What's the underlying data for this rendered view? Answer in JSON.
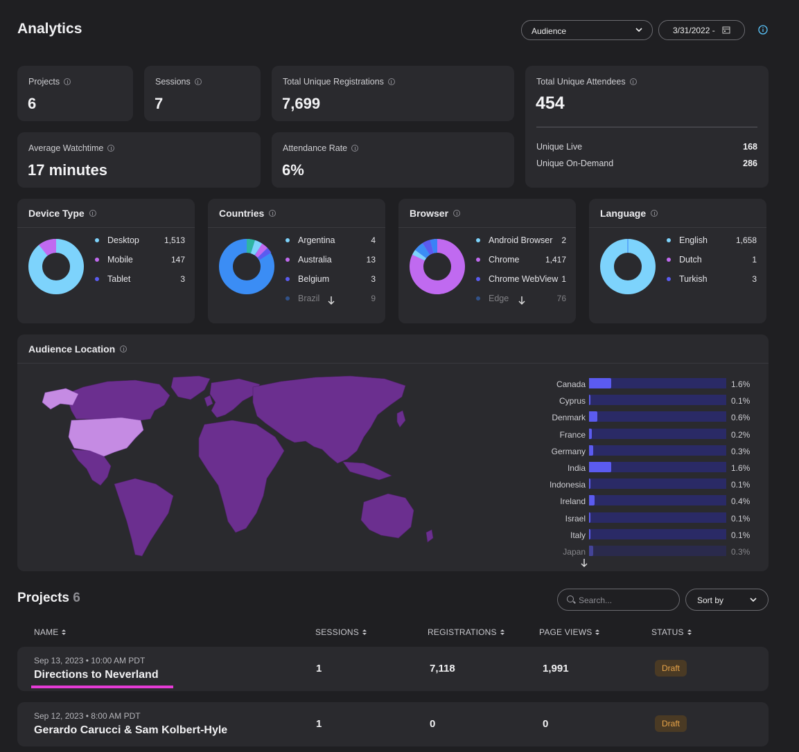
{
  "header": {
    "title": "Analytics",
    "dropdown_value": "Audience",
    "date_value": "3/31/2022 -"
  },
  "stats": {
    "projects": {
      "label": "Projects",
      "value": "6"
    },
    "sessions": {
      "label": "Sessions",
      "value": "7"
    },
    "registrations": {
      "label": "Total Unique Registrations",
      "value": "7,699"
    },
    "watchtime": {
      "label": "Average Watchtime",
      "value": "17 minutes"
    },
    "attendance": {
      "label": "Attendance Rate",
      "value": "6%"
    },
    "attendees": {
      "label": "Total Unique Attendees",
      "value": "454",
      "live_label": "Unique Live",
      "live_value": "168",
      "ondemand_label": "Unique On-Demand",
      "ondemand_value": "286"
    }
  },
  "device": {
    "title": "Device Type",
    "items": [
      {
        "label": "Desktop",
        "value": "1,513",
        "color": "#7dd3fc"
      },
      {
        "label": "Mobile",
        "value": "147",
        "color": "#c06af0"
      },
      {
        "label": "Tablet",
        "value": "3",
        "color": "#5b5bf0"
      }
    ]
  },
  "countries": {
    "title": "Countries",
    "items": [
      {
        "label": "Argentina",
        "value": "4",
        "color": "#7dd3fc"
      },
      {
        "label": "Australia",
        "value": "13",
        "color": "#c06af0"
      },
      {
        "label": "Belgium",
        "value": "3",
        "color": "#5b5bf0"
      },
      {
        "label": "Brazil",
        "value": "9",
        "color": "#3b82f6"
      }
    ]
  },
  "browser": {
    "title": "Browser",
    "items": [
      {
        "label": "Android Browser",
        "value": "2",
        "color": "#7dd3fc"
      },
      {
        "label": "Chrome",
        "value": "1,417",
        "color": "#c06af0"
      },
      {
        "label": "Chrome WebView",
        "value": "1",
        "color": "#5b5bf0"
      },
      {
        "label": "Edge",
        "value": "76",
        "color": "#3b82f6"
      }
    ]
  },
  "language": {
    "title": "Language",
    "items": [
      {
        "label": "English",
        "value": "1,658",
        "color": "#7dd3fc"
      },
      {
        "label": "Dutch",
        "value": "1",
        "color": "#c06af0"
      },
      {
        "label": "Turkish",
        "value": "3",
        "color": "#5b5bf0"
      }
    ]
  },
  "location": {
    "title": "Audience Location",
    "rows": [
      {
        "country": "Canada",
        "pct": "1.6%",
        "fraction": 0.016
      },
      {
        "country": "Cyprus",
        "pct": "0.1%",
        "fraction": 0.001
      },
      {
        "country": "Denmark",
        "pct": "0.6%",
        "fraction": 0.006
      },
      {
        "country": "France",
        "pct": "0.2%",
        "fraction": 0.002
      },
      {
        "country": "Germany",
        "pct": "0.3%",
        "fraction": 0.003
      },
      {
        "country": "India",
        "pct": "1.6%",
        "fraction": 0.016
      },
      {
        "country": "Indonesia",
        "pct": "0.1%",
        "fraction": 0.001
      },
      {
        "country": "Ireland",
        "pct": "0.4%",
        "fraction": 0.004
      },
      {
        "country": "Israel",
        "pct": "0.1%",
        "fraction": 0.001
      },
      {
        "country": "Italy",
        "pct": "0.1%",
        "fraction": 0.001
      },
      {
        "country": "Japan",
        "pct": "0.3%",
        "fraction": 0.003
      }
    ]
  },
  "projects": {
    "title": "Projects",
    "count": "6",
    "search_placeholder": "Search...",
    "sort_label": "Sort by",
    "columns": [
      "NAME",
      "SESSIONS",
      "REGISTRATIONS",
      "PAGE VIEWS",
      "STATUS"
    ],
    "rows": [
      {
        "date": "Sep 13, 2023 • 10:00 AM PDT",
        "name": "Directions to Neverland",
        "sessions": "1",
        "registrations": "7,118",
        "page_views": "1,991",
        "status": "Draft"
      },
      {
        "date": "Sep 12, 2023 • 8:00 AM PDT",
        "name": "Gerardo Carucci & Sam Kolbert-Hyle",
        "sessions": "1",
        "registrations": "0",
        "page_views": "0",
        "status": "Draft"
      }
    ]
  },
  "colors": {
    "accent": "#5b5bf0",
    "map_fill": "#6b2f8f",
    "map_highlight": "#c58be3",
    "underline": "#e53bd6"
  }
}
